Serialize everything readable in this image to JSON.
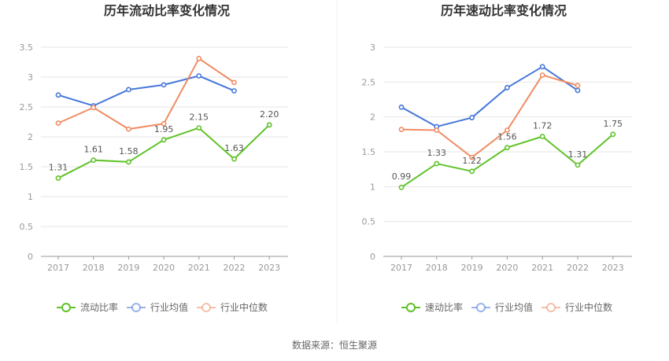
{
  "chart_data": [
    {
      "type": "line",
      "title": "历年流动比率变化情况",
      "categories": [
        "2017",
        "2018",
        "2019",
        "2020",
        "2021",
        "2022",
        "2023"
      ],
      "ylim": [
        0,
        3.5
      ],
      "yticks": [
        "0",
        "0.5",
        "1",
        "1.5",
        "2",
        "2.5",
        "3",
        "3.5"
      ],
      "ytick_values": [
        0,
        0.5,
        1,
        1.5,
        2,
        2.5,
        3,
        3.5
      ],
      "grid": true,
      "legend_position": "bottom",
      "series": [
        {
          "name": "流动比率",
          "color": "#5fc228",
          "values": [
            1.31,
            1.61,
            1.58,
            1.95,
            2.15,
            1.63,
            2.2
          ],
          "labels": [
            "1.31",
            "1.61",
            "1.58",
            "1.95",
            "2.15",
            "1.63",
            "2.20"
          ]
        },
        {
          "name": "行业均值",
          "color": "#4677db",
          "values": [
            2.7,
            2.52,
            2.79,
            2.87,
            3.02,
            2.77,
            null
          ]
        },
        {
          "name": "行业中位数",
          "color": "#f08c63",
          "values": [
            2.23,
            2.49,
            2.13,
            2.22,
            3.31,
            2.91,
            null
          ]
        }
      ]
    },
    {
      "type": "line",
      "title": "历年速动比率变化情况",
      "categories": [
        "2017",
        "2018",
        "2019",
        "2020",
        "2021",
        "2022",
        "2023"
      ],
      "ylim": [
        0,
        3
      ],
      "yticks": [
        "0",
        "0.5",
        "1",
        "1.5",
        "2",
        "2.5",
        "3"
      ],
      "ytick_values": [
        0,
        0.5,
        1,
        1.5,
        2,
        2.5,
        3
      ],
      "grid": true,
      "legend_position": "bottom",
      "series": [
        {
          "name": "速动比率",
          "color": "#5fc228",
          "values": [
            0.99,
            1.33,
            1.22,
            1.56,
            1.72,
            1.31,
            1.75
          ],
          "labels": [
            "0.99",
            "1.33",
            "1.22",
            "1.56",
            "1.72",
            "1.31",
            "1.75"
          ]
        },
        {
          "name": "行业均值",
          "color": "#4677db",
          "values": [
            2.14,
            1.86,
            1.99,
            2.42,
            2.72,
            2.38,
            null
          ]
        },
        {
          "name": "行业中位数",
          "color": "#f08c63",
          "values": [
            1.82,
            1.81,
            1.42,
            1.81,
            2.6,
            2.45,
            null
          ]
        }
      ]
    }
  ],
  "footer": {
    "source": "数据来源：恒生聚源"
  }
}
